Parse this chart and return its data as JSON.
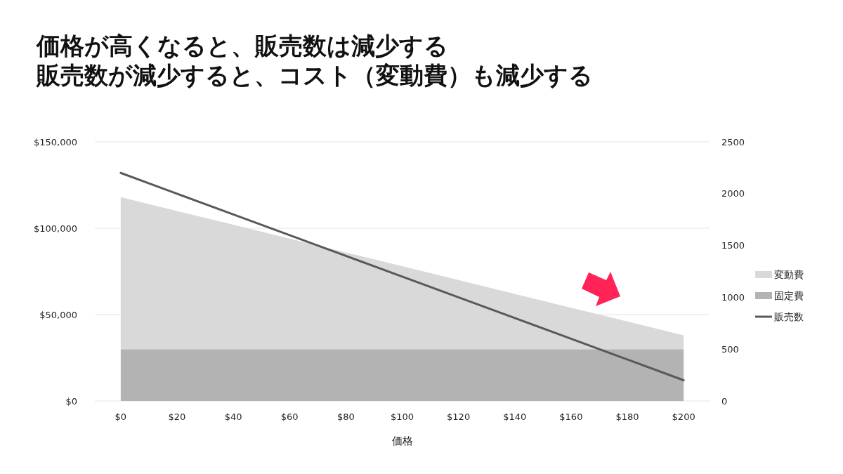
{
  "chart_data": {
    "type": "area",
    "title": "価格が高くなると、販売数は減少する",
    "subtitle": "販売数が減少すると、コスト（変動費）も減少する",
    "xlabel": "価格",
    "categories": [
      "$0",
      "$20",
      "$40",
      "$60",
      "$80",
      "$100",
      "$120",
      "$140",
      "$160",
      "$180",
      "$200"
    ],
    "series": [
      {
        "name": "固定費",
        "color": "#b3b3b3",
        "values": [
          30000,
          30000,
          30000,
          30000,
          30000,
          30000,
          30000,
          30000,
          30000,
          30000,
          30000
        ]
      },
      {
        "name": "変動費",
        "color": "#d9d9d9",
        "values": [
          88000,
          80000,
          72000,
          64000,
          56000,
          48000,
          40000,
          32000,
          24000,
          16000,
          8000
        ]
      },
      {
        "name": "販売数",
        "type": "line",
        "axis": "y2",
        "color": "#595959",
        "values": [
          2200,
          2000,
          1800,
          1600,
          1400,
          1200,
          1000,
          800,
          600,
          400,
          200
        ]
      }
    ],
    "stacked": true,
    "ylim": [
      0,
      150000
    ],
    "yticks": [
      {
        "value": 0,
        "label": "$0"
      },
      {
        "value": 50000,
        "label": "$50,000"
      },
      {
        "value": 100000,
        "label": "$100,000"
      },
      {
        "value": 150000,
        "label": "$150,000"
      }
    ],
    "y2lim": [
      0,
      2500
    ],
    "y2ticks": [
      0,
      500,
      1000,
      1500,
      2000,
      2500
    ],
    "grid": "y",
    "legend": "right"
  }
}
